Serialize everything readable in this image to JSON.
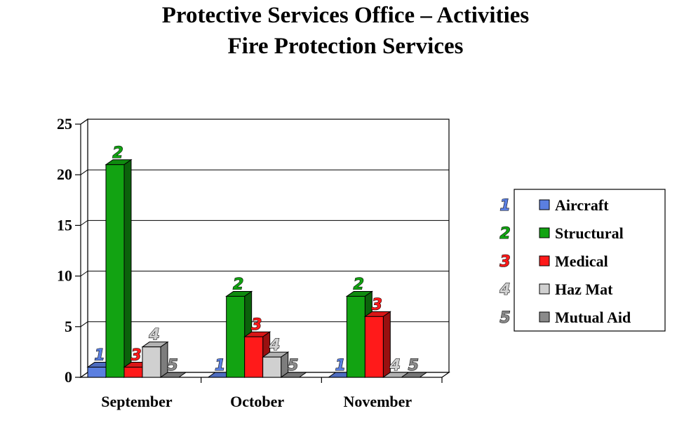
{
  "chart_data": {
    "type": "bar",
    "title": "Protective Services Office – Activities",
    "subtitle": "Fire Protection Services",
    "categories": [
      "September",
      "October",
      "November"
    ],
    "series": [
      {
        "name": "Aircraft",
        "marker": "1",
        "color": "#5b7fe0",
        "values": [
          1,
          0,
          0
        ]
      },
      {
        "name": "Structural",
        "marker": "2",
        "color": "#12a312",
        "values": [
          21,
          8,
          8
        ]
      },
      {
        "name": "Medical",
        "marker": "3",
        "color": "#ff1a1a",
        "values": [
          1,
          4,
          6
        ]
      },
      {
        "name": "Haz Mat",
        "marker": "4",
        "color": "#d0d0d0",
        "values": [
          3,
          2,
          0
        ]
      },
      {
        "name": "Mutual Aid",
        "marker": "5",
        "color": "#8a8a8a",
        "values": [
          0,
          0,
          0
        ]
      }
    ],
    "ylim": [
      0,
      25
    ],
    "yticks": [
      "0",
      "5",
      "10",
      "15",
      "20",
      "25"
    ],
    "grid": true,
    "legend": "right",
    "xlabel": "",
    "ylabel": ""
  }
}
